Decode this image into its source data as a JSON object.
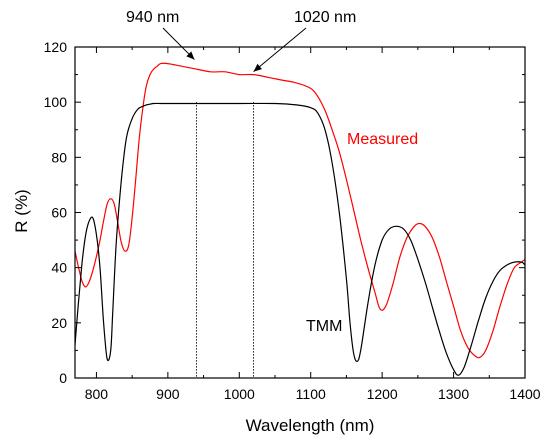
{
  "chart_data": {
    "type": "line",
    "title": "",
    "xlabel": "Wavelength (nm)",
    "ylabel": "R (%)",
    "xlim": [
      770,
      1400
    ],
    "ylim": [
      0,
      120
    ],
    "xticks": [
      800,
      900,
      1000,
      1100,
      1200,
      1300,
      1400
    ],
    "yticks": [
      0,
      20,
      40,
      60,
      80,
      100,
      120
    ],
    "grid": false,
    "series": [
      {
        "name": "Measured",
        "color": "#ff0000",
        "x": [
          770,
          775,
          780,
          785,
          790,
          795,
          800,
          805,
          810,
          815,
          820,
          825,
          830,
          835,
          840,
          845,
          850,
          855,
          860,
          865,
          870,
          875,
          880,
          885,
          890,
          900,
          920,
          940,
          960,
          980,
          1000,
          1020,
          1040,
          1060,
          1080,
          1100,
          1110,
          1120,
          1130,
          1140,
          1150,
          1160,
          1170,
          1180,
          1190,
          1197,
          1205,
          1215,
          1225,
          1235,
          1245,
          1252,
          1260,
          1270,
          1280,
          1290,
          1300,
          1310,
          1320,
          1330,
          1337,
          1345,
          1355,
          1365,
          1375,
          1385,
          1395,
          1400
        ],
        "y": [
          46,
          40,
          35,
          33,
          35,
          39,
          44,
          50,
          57,
          63,
          65,
          63,
          56,
          49,
          46,
          48,
          58,
          72,
          87,
          98,
          106,
          110,
          112,
          113,
          114,
          114,
          113,
          112,
          111,
          111,
          110,
          110,
          109,
          108,
          107,
          105,
          102,
          97,
          90,
          82,
          72,
          61,
          50,
          40,
          31,
          25,
          26,
          34,
          44,
          51,
          55,
          56,
          55,
          51,
          44,
          35,
          26,
          17,
          11,
          8,
          7.5,
          10,
          17,
          26,
          34,
          40,
          42,
          43
        ]
      },
      {
        "name": "TMM",
        "color": "#000000",
        "x": [
          770,
          775,
          780,
          785,
          790,
          795,
          800,
          805,
          810,
          815,
          820,
          823,
          828,
          835,
          842,
          850,
          858,
          865,
          870,
          880,
          890,
          900,
          950,
          1000,
          1050,
          1080,
          1100,
          1110,
          1120,
          1130,
          1140,
          1150,
          1155,
          1160,
          1165,
          1170,
          1180,
          1190,
          1200,
          1210,
          1220,
          1230,
          1240,
          1250,
          1260,
          1270,
          1280,
          1290,
          1300,
          1307,
          1315,
          1325,
          1335,
          1345,
          1355,
          1365,
          1375,
          1385,
          1395,
          1400
        ],
        "y": [
          12,
          28,
          42,
          52,
          57,
          58,
          52,
          40,
          20,
          7,
          10,
          25,
          50,
          72,
          87,
          94,
          97.5,
          98.5,
          99,
          99.5,
          99.5,
          99.5,
          99.5,
          99.5,
          99.5,
          99,
          98,
          96,
          90,
          78,
          60,
          36,
          20,
          9,
          6,
          10,
          27,
          41,
          50,
          54,
          55,
          54,
          50,
          43,
          35,
          26,
          17,
          9,
          3,
          1,
          4,
          12,
          21,
          29,
          35,
          39,
          41,
          42,
          42,
          41
        ]
      }
    ],
    "vlines": [
      940,
      1020
    ],
    "annotations": [
      {
        "text": "940 nm",
        "points_to": [
          940,
          114
        ]
      },
      {
        "text": "1020 nm",
        "points_to": [
          1020,
          110
        ]
      },
      {
        "text": "Measured",
        "color": "#ff0000"
      },
      {
        "text": "TMM",
        "color": "#000000"
      }
    ]
  }
}
